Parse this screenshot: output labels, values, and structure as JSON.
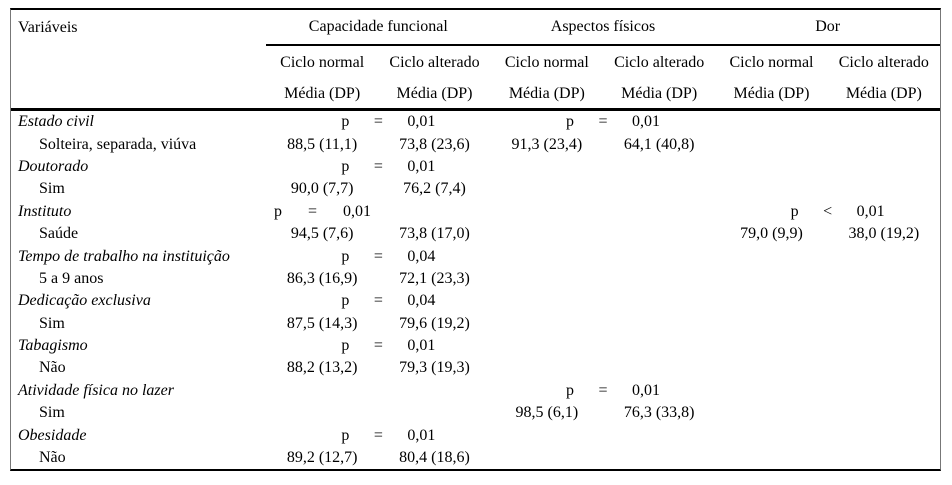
{
  "table": {
    "columns_header": "Variáveis",
    "groups": [
      "Capacidade funcional",
      "Aspectos físicos",
      "Dor"
    ],
    "sub_columns": {
      "normal": "Ciclo normal",
      "altered": "Ciclo alterado",
      "measure": "Média (DP)"
    },
    "rows": [
      {
        "label": "Estado civil",
        "pairs": {
          "0": {
            "p": "p",
            "op": "=",
            "val": "0,01"
          },
          "1": {
            "p": "p",
            "op": "=",
            "val": "0,01"
          }
        }
      },
      {
        "label": "Solteira, separada, viúva",
        "vals": [
          "88,5 (11,1)",
          "73,8 (23,6)",
          "91,3 (23,4)",
          "64,1 (40,8)",
          "",
          ""
        ]
      },
      {
        "label": "Doutorado",
        "pairs": {
          "0": {
            "p": "p",
            "op": "=",
            "val": "0,01"
          }
        }
      },
      {
        "label": "Sim",
        "vals": [
          "90,0 (7,7)",
          "76,2 (7,4)",
          "",
          "",
          "",
          ""
        ]
      },
      {
        "label": "Instituto",
        "pairs": {
          "0": {
            "p": "p",
            "op": "=",
            "val": "0,01"
          },
          "2": {
            "p": "p",
            "op": "<",
            "val": "0,01"
          }
        }
      },
      {
        "label": "Saúde",
        "vals": [
          "94,5 (7,6)",
          "73,8 (17,0)",
          "",
          "",
          "79,0 (9,9)",
          "38,0 (19,2)"
        ]
      },
      {
        "label": "Tempo de trabalho na instituição",
        "pairs": {
          "0": {
            "p": "p",
            "op": "=",
            "val": "0,04"
          }
        }
      },
      {
        "label": "5 a 9 anos",
        "vals": [
          "86,3 (16,9)",
          "72,1 (23,3)",
          "",
          "",
          "",
          ""
        ]
      },
      {
        "label": "Dedicação exclusiva",
        "pairs": {
          "0": {
            "p": "p",
            "op": "=",
            "val": "0,04"
          }
        }
      },
      {
        "label": "Sim",
        "vals": [
          "87,5 (14,3)",
          "79,6 (19,2)",
          "",
          "",
          "",
          ""
        ]
      },
      {
        "label": "Tabagismo",
        "pairs": {
          "0": {
            "p": "p",
            "op": "=",
            "val": "0,01"
          }
        }
      },
      {
        "label": "Não",
        "vals": [
          "88,2 (13,2)",
          "79,3 (19,3)",
          "",
          "",
          "",
          ""
        ]
      },
      {
        "label": "Atividade física no lazer",
        "pairs": {
          "1": {
            "p": "p",
            "op": "=",
            "val": "0,01"
          }
        }
      },
      {
        "label": "Sim",
        "vals": [
          "",
          "",
          "98,5 (6,1)",
          "76,3 (33,8)",
          "",
          ""
        ]
      },
      {
        "label": "Obesidade",
        "pairs": {
          "0": {
            "p": "p",
            "op": "=",
            "val": "0,01"
          }
        }
      },
      {
        "label": "Não",
        "vals": [
          "89,2 (12,7)",
          "80,4 (18,6)",
          "",
          "",
          "",
          ""
        ]
      }
    ]
  }
}
